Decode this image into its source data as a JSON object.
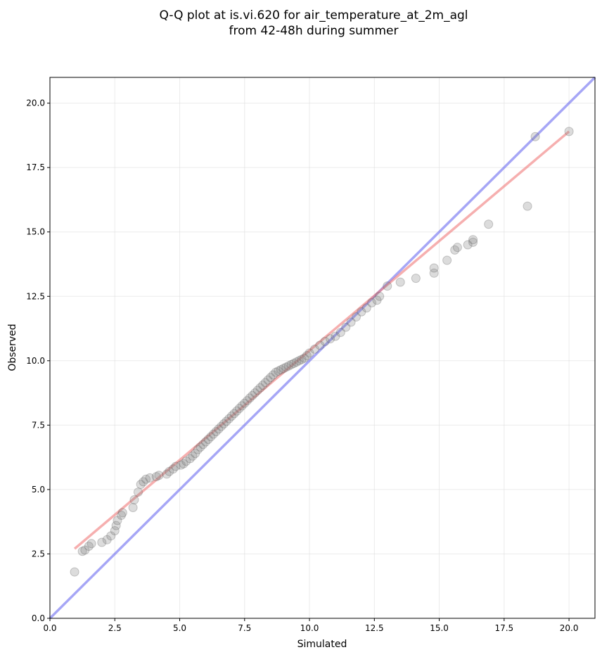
{
  "chart_data": {
    "type": "scatter",
    "title_lines": [
      "Q-Q plot at is.vi.620 for air_temperature_at_2m_agl",
      "from 42-48h during summer"
    ],
    "xlabel": "Simulated",
    "ylabel": "Observed",
    "xlim": [
      0,
      21
    ],
    "ylim": [
      0,
      21
    ],
    "xticks": [
      "0.0",
      "2.5",
      "5.0",
      "7.5",
      "10.0",
      "12.5",
      "15.0",
      "17.5",
      "20.0"
    ],
    "yticks": [
      "0.0",
      "2.5",
      "5.0",
      "7.5",
      "10.0",
      "12.5",
      "15.0",
      "17.5",
      "20.0"
    ],
    "grid": true,
    "colors": {
      "points": "#808080",
      "identity_line": "#6b6bf0",
      "fit_line": "#f07a7a"
    },
    "identity_line": {
      "x": [
        0,
        21
      ],
      "y": [
        0,
        21
      ]
    },
    "fit_line": {
      "x": [
        0.95,
        20.0
      ],
      "y": [
        2.7,
        18.9
      ]
    },
    "points": {
      "x": [
        0.95,
        1.25,
        1.35,
        1.5,
        1.6,
        2.0,
        2.2,
        2.35,
        2.5,
        2.55,
        2.6,
        2.75,
        2.8,
        3.2,
        3.25,
        3.4,
        3.5,
        3.6,
        3.7,
        3.85,
        4.1,
        4.2,
        4.5,
        4.6,
        4.75,
        4.85,
        5.05,
        5.15,
        5.25,
        5.4,
        5.5,
        5.6,
        5.7,
        5.8,
        5.9,
        6.0,
        6.1,
        6.2,
        6.3,
        6.4,
        6.5,
        6.6,
        6.7,
        6.8,
        6.9,
        7.0,
        7.1,
        7.2,
        7.3,
        7.4,
        7.5,
        7.6,
        7.7,
        7.8,
        7.9,
        8.0,
        8.1,
        8.2,
        8.3,
        8.4,
        8.5,
        8.6,
        8.7,
        8.8,
        8.9,
        9.0,
        9.1,
        9.2,
        9.3,
        9.4,
        9.5,
        9.6,
        9.7,
        9.8,
        9.9,
        10.0,
        10.2,
        10.4,
        10.6,
        10.8,
        11.0,
        11.2,
        11.4,
        11.6,
        11.8,
        12.0,
        12.2,
        12.4,
        12.6,
        12.7,
        13.0,
        13.5,
        14.1,
        14.8,
        14.8,
        15.3,
        15.6,
        15.7,
        16.1,
        16.3,
        16.3,
        16.9,
        18.4,
        18.7,
        20.0
      ],
      "y": [
        1.8,
        2.6,
        2.65,
        2.8,
        2.9,
        2.95,
        3.05,
        3.2,
        3.4,
        3.6,
        3.8,
        4.0,
        4.1,
        4.3,
        4.6,
        4.9,
        5.2,
        5.3,
        5.4,
        5.45,
        5.5,
        5.55,
        5.6,
        5.7,
        5.8,
        5.9,
        5.95,
        6.0,
        6.1,
        6.2,
        6.3,
        6.4,
        6.55,
        6.65,
        6.75,
        6.85,
        6.95,
        7.05,
        7.15,
        7.25,
        7.35,
        7.45,
        7.55,
        7.65,
        7.75,
        7.85,
        7.95,
        8.05,
        8.15,
        8.25,
        8.35,
        8.45,
        8.55,
        8.65,
        8.75,
        8.85,
        8.95,
        9.05,
        9.15,
        9.25,
        9.35,
        9.45,
        9.55,
        9.6,
        9.65,
        9.7,
        9.75,
        9.8,
        9.85,
        9.9,
        9.95,
        10.0,
        10.05,
        10.1,
        10.2,
        10.3,
        10.45,
        10.6,
        10.75,
        10.85,
        10.95,
        11.1,
        11.3,
        11.5,
        11.7,
        11.9,
        12.05,
        12.25,
        12.35,
        12.5,
        12.9,
        13.05,
        13.2,
        13.4,
        13.6,
        13.9,
        14.3,
        14.4,
        14.5,
        14.6,
        14.7,
        15.3,
        16.0,
        18.7,
        18.9
      ]
    }
  }
}
